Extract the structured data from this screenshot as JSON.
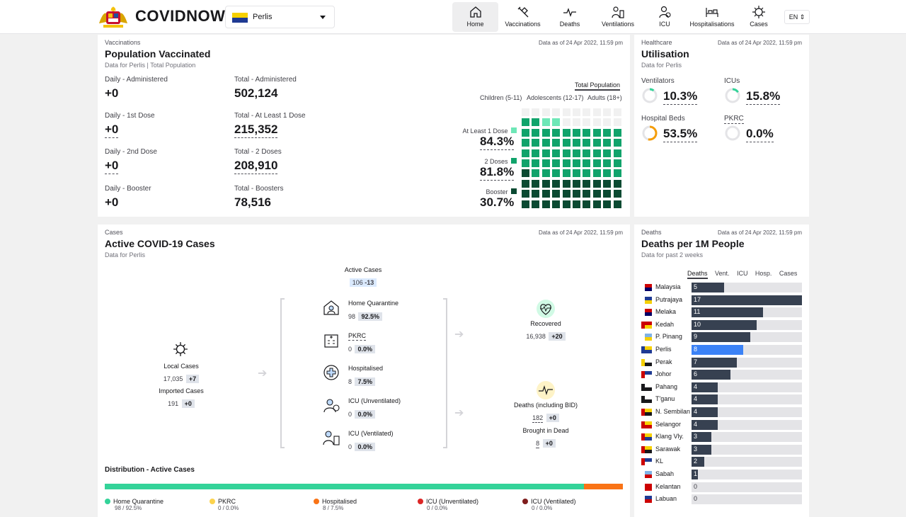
{
  "header": {
    "brand": "COVIDNOW",
    "state": "Perlis",
    "nav": [
      {
        "label": "Home",
        "icon": "home-icon",
        "active": true
      },
      {
        "label": "Vaccinations",
        "icon": "syringe-icon"
      },
      {
        "label": "Deaths",
        "icon": "pulse-icon"
      },
      {
        "label": "Ventilations",
        "icon": "ventilator-icon"
      },
      {
        "label": "ICU",
        "icon": "icu-doctor-icon"
      },
      {
        "label": "Hospitalisations",
        "icon": "hospital-bed-icon"
      },
      {
        "label": "Cases",
        "icon": "virus-icon"
      }
    ],
    "lang": "EN"
  },
  "vaccinations": {
    "eyebrow": "Vaccinations",
    "title": "Population Vaccinated",
    "subtitle": "Data for Perlis",
    "subtitle_sep": "|",
    "subtitle_2": "Total Population",
    "as_of": "Data as of 24 Apr 2022, 11:59 pm",
    "daily": [
      {
        "label": "Daily - Administered",
        "value": "+0"
      },
      {
        "label": "Daily - 1st Dose",
        "value": "+0"
      },
      {
        "label": "Daily - 2nd Dose",
        "value": "+0"
      },
      {
        "label": "Daily - Booster",
        "value": "+0"
      }
    ],
    "totals": [
      {
        "label": "Total - Administered",
        "value": "502,124"
      },
      {
        "label": "Total - At Least 1 Dose",
        "value": "215,352"
      },
      {
        "label": "Total - 2 Doses",
        "value": "208,910"
      },
      {
        "label": "Total - Boosters",
        "value": "78,516"
      }
    ],
    "tabs": {
      "top": "Total Population",
      "groups": [
        "Children (5-11)",
        "Adolescents (12-17)",
        "Adults (18+)"
      ]
    },
    "doses": [
      {
        "label": "At Least 1 Dose",
        "value": "84.3%",
        "pct": 84.3,
        "color": "#6ee7b7"
      },
      {
        "label": "2 Doses",
        "value": "81.8%",
        "pct": 81.8,
        "color": "#10a36b"
      },
      {
        "label": "Booster",
        "value": "30.7%",
        "pct": 30.7,
        "color": "#0b4a32"
      }
    ]
  },
  "healthcare": {
    "eyebrow": "Healthcare",
    "title": "Utilisation",
    "subtitle": "Data for Perlis",
    "as_of": "Data as of 24 Apr 2022, 11:59 pm",
    "items": [
      {
        "label": "Ventilators",
        "value": "10.3%",
        "pct": 10.3,
        "color": "#34d399"
      },
      {
        "label": "ICUs",
        "value": "15.8%",
        "pct": 15.8,
        "color": "#34d399"
      },
      {
        "label": "Hospital Beds",
        "value": "53.5%",
        "pct": 53.5,
        "color": "#f59e0b"
      },
      {
        "label": "PKRC",
        "value": "0.0%",
        "pct": 0,
        "color": "#34d399"
      }
    ]
  },
  "cases": {
    "eyebrow": "Cases",
    "title": "Active COVID-19 Cases",
    "subtitle": "Data for Perlis",
    "as_of": "Data as of 24 Apr 2022, 11:59 pm",
    "active": {
      "label": "Active Cases",
      "value": "106",
      "delta": "-13"
    },
    "local": {
      "label": "Local Cases",
      "value": "17,035",
      "delta": "+7"
    },
    "imported": {
      "label": "Imported Cases",
      "value": "191",
      "delta": "+0"
    },
    "mid": [
      {
        "label": "Home Quarantine",
        "value": "98",
        "pct": "92.5%",
        "icon": "home-quarantine-icon"
      },
      {
        "label": "PKRC",
        "value": "0",
        "pct": "0.0%",
        "icon": "pkrc-building-icon"
      },
      {
        "label": "Hospitalised",
        "value": "8",
        "pct": "7.5%",
        "icon": "hospital-cross-icon"
      },
      {
        "label": "ICU (Unventilated)",
        "value": "0",
        "pct": "0.0%",
        "icon": "icu-unventilated-icon"
      },
      {
        "label": "ICU (Ventilated)",
        "value": "0",
        "pct": "0.0%",
        "icon": "icu-ventilated-icon"
      }
    ],
    "recovered": {
      "label": "Recovered",
      "value": "16,938",
      "delta": "+20"
    },
    "deaths": {
      "label": "Deaths (including BID)",
      "value": "182",
      "delta": "+0"
    },
    "bid": {
      "label": "Brought in Dead",
      "value": "8",
      "delta": "+0"
    },
    "distribution": {
      "title": "Distribution - Active Cases",
      "items": [
        {
          "label": "Home Quarantine",
          "sub": "98 / 92.5%",
          "pct": 92.5,
          "color": "#34d399"
        },
        {
          "label": "PKRC",
          "sub": "0 / 0.0%",
          "pct": 0,
          "color": "#fcd34d"
        },
        {
          "label": "Hospitalised",
          "sub": "8 / 7.5%",
          "pct": 7.5,
          "color": "#f97316"
        },
        {
          "label": "ICU (Unventilated)",
          "sub": "0 / 0.0%",
          "pct": 0,
          "color": "#dc2626"
        },
        {
          "label": "ICU (Ventilated)",
          "sub": "0 / 0.0%",
          "pct": 0,
          "color": "#7f1d1d"
        }
      ]
    }
  },
  "deaths_card": {
    "eyebrow": "Deaths",
    "title": "Deaths per 1M People",
    "subtitle": "Data for past 2 weeks",
    "as_of": "Data as of 24 Apr 2022, 11:59 pm",
    "tabs": [
      "Deaths",
      "Vent.",
      "ICU",
      "Hosp.",
      "Cases"
    ],
    "chart_data": {
      "type": "bar",
      "categories": [
        "Malaysia",
        "Putrajaya",
        "Melaka",
        "Kedah",
        "P. Pinang",
        "Perlis",
        "Perak",
        "Johor",
        "Pahang",
        "T'ganu",
        "N. Sembilan",
        "Selangor",
        "Klang Vly.",
        "Sarawak",
        "KL",
        "Sabah",
        "Kelantan",
        "Labuan"
      ],
      "values": [
        5,
        17,
        11,
        10,
        9,
        8,
        7,
        6,
        4,
        4,
        4,
        4,
        3,
        3,
        2,
        1,
        0,
        0
      ],
      "highlight": "Perlis",
      "bar_color": "#374151",
      "highlight_color": "#3b82f6",
      "xlim": [
        0,
        17
      ]
    }
  }
}
